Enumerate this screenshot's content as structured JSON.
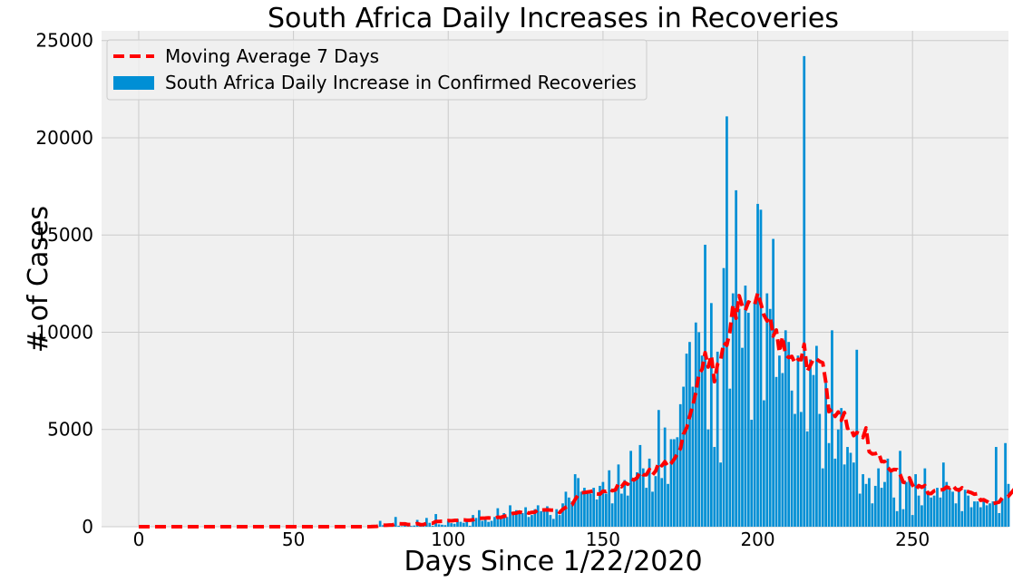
{
  "colors": {
    "background": "#ffffff",
    "plot_background": "#f0f0f0",
    "grid": "#cbcbcb",
    "bar": "#008fd5",
    "line": "#ff0000",
    "legend_border": "#cccccc"
  },
  "chart_data": {
    "type": "bar",
    "title": "South Africa Daily Increases in Recoveries",
    "xlabel": "Days Since 1/22/2020",
    "ylabel": "# of Cases",
    "xlim": [
      -12,
      281
    ],
    "ylim": [
      0,
      25500
    ],
    "x_ticks": [
      0,
      50,
      100,
      150,
      200,
      250
    ],
    "y_ticks": [
      0,
      5000,
      10000,
      15000,
      20000,
      25000
    ],
    "grid": true,
    "legend_position": "top-left",
    "series": [
      {
        "name": "South Africa Daily Increase in Confirmed Recoveries",
        "kind": "bar",
        "x_start": 0,
        "values": [
          0,
          0,
          0,
          0,
          0,
          0,
          0,
          0,
          0,
          0,
          0,
          0,
          0,
          0,
          0,
          0,
          0,
          0,
          0,
          0,
          0,
          0,
          0,
          0,
          0,
          0,
          0,
          0,
          0,
          0,
          0,
          0,
          0,
          0,
          0,
          0,
          0,
          0,
          0,
          0,
          0,
          0,
          0,
          0,
          0,
          0,
          0,
          0,
          0,
          0,
          0,
          0,
          0,
          0,
          0,
          0,
          0,
          0,
          0,
          0,
          0,
          0,
          0,
          0,
          0,
          0,
          0,
          0,
          0,
          0,
          0,
          0,
          0,
          0,
          0,
          30,
          60,
          40,
          300,
          80,
          30,
          60,
          50,
          500,
          50,
          30,
          70,
          20,
          40,
          60,
          350,
          60,
          80,
          450,
          200,
          50,
          650,
          120,
          100,
          80,
          300,
          180,
          150,
          400,
          250,
          200,
          300,
          50,
          600,
          450,
          850,
          300,
          350,
          250,
          300,
          500,
          950,
          400,
          700,
          500,
          1100,
          600,
          850,
          750,
          700,
          1000,
          500,
          600,
          900,
          1100,
          800,
          850,
          1050,
          600,
          400,
          900,
          600,
          1200,
          1800,
          1500,
          1300,
          2700,
          2500,
          1800,
          2000,
          1700,
          1700,
          2000,
          1400,
          2100,
          2300,
          1700,
          2900,
          1200,
          1800,
          3200,
          1700,
          2400,
          1600,
          3900,
          2400,
          2800,
          4200,
          3000,
          2000,
          3500,
          1800,
          2600,
          6000,
          2500,
          5100,
          2200,
          4500,
          4500,
          4600,
          6300,
          7200,
          8900,
          9500,
          7200,
          10500,
          10000,
          8800,
          14500,
          5000,
          11500,
          4100,
          9000,
          3300,
          13300,
          21100,
          7100,
          12000,
          17300,
          11200,
          9200,
          12400,
          11000,
          5500,
          11500,
          16600,
          16300,
          6500,
          12000,
          11200,
          14800,
          7700,
          8800,
          7900,
          10100,
          9500,
          7000,
          5800,
          8800,
          5900,
          24200,
          4900,
          8600,
          7800,
          9300,
          5800,
          3000,
          7400,
          4300,
          10100,
          3500,
          5000,
          6100,
          3200,
          4100,
          3800,
          3300,
          9100,
          1700,
          2700,
          2200,
          2500,
          1200,
          2100,
          3000,
          2000,
          2300,
          3500,
          2800,
          1500,
          800,
          3900,
          900,
          2300,
          2500,
          600,
          2700,
          1600,
          1100,
          3000,
          1700,
          1500,
          1600,
          2000,
          1500,
          3300,
          2300,
          1900,
          1800,
          1200,
          2000,
          800,
          1900,
          1600,
          1000,
          1300,
          1300,
          1000,
          1400,
          1100,
          1200,
          1300,
          4100,
          700,
          1400,
          4300,
          2200
        ]
      },
      {
        "name": "Moving Average 7 Days",
        "kind": "line",
        "x_start": 0,
        "values": [
          0,
          0,
          0,
          0,
          0,
          0,
          0,
          0,
          0,
          0,
          0,
          0,
          0,
          0,
          0,
          0,
          0,
          0,
          0,
          0,
          0,
          0,
          0,
          0,
          0,
          0,
          0,
          0,
          0,
          0,
          0,
          0,
          0,
          0,
          0,
          0,
          0,
          0,
          0,
          0,
          0,
          0,
          0,
          0,
          0,
          0,
          0,
          0,
          0,
          0,
          0,
          0,
          0,
          0,
          0,
          0,
          0,
          0,
          0,
          0,
          0,
          0,
          0,
          0,
          0,
          0,
          0,
          0,
          0,
          0,
          0,
          0,
          0,
          0,
          0,
          4,
          13,
          19,
          61,
          73,
          77,
          86,
          89,
          151,
          153,
          146,
          147,
          110,
          114,
          121,
          162,
          107,
          111,
          167,
          177,
          180,
          268,
          269,
          277,
          276,
          314,
          304,
          324,
          326,
          343,
          350,
          333,
          331,
          354,
          405,
          429,
          436,
          443,
          455,
          442,
          436,
          491,
          478,
          535,
          558,
          641,
          690,
          700,
          755,
          718,
          771,
          697,
          736,
          747,
          880,
          857,
          864,
          867,
          854,
          850,
          837,
          731,
          893,
          1000,
          1083,
          1127,
          1400,
          1656,
          1744,
          1757,
          1783,
          1808,
          1843,
          1690,
          1673,
          1832,
          1814,
          1942,
          1850,
          1890,
          2224,
          2058,
          2271,
          2183,
          2469,
          2400,
          2511,
          2816,
          2671,
          2670,
          2941,
          2669,
          2857,
          3296,
          3136,
          3343,
          3095,
          3257,
          3471,
          3744,
          4010,
          4760,
          5071,
          5671,
          6239,
          6895,
          7857,
          8087,
          8951,
          8213,
          8814,
          7457,
          8357,
          8536,
          9464,
          9329,
          10021,
          11421,
          10721,
          11879,
          11343,
          11129,
          11557,
          11471,
          11414,
          12017,
          11471,
          10883,
          10583,
          10793,
          9807,
          10114,
          8971,
          9771,
          8843,
          8700,
          8757,
          8414,
          8600,
          8586,
          9386,
          7986,
          8300,
          8629,
          8614,
          8500,
          8429,
          7414,
          5914,
          6043,
          5671,
          5900,
          5471,
          5871,
          5057,
          5100,
          4686,
          4843,
          4786,
          4586,
          5080,
          3857,
          3743,
          3757,
          3829,
          3350,
          3357,
          3043,
          2871,
          2943,
          2929,
          2686,
          2286,
          2257,
          2514,
          2143,
          1900,
          2114,
          2029,
          2114,
          1714,
          1700,
          1843,
          1871,
          1886,
          1914,
          2043,
          1986,
          2129,
          1929,
          1871,
          2000,
          1843,
          1800,
          1751,
          1671,
          1700,
          1357,
          1386,
          1300,
          1200,
          1190,
          1224,
          1266,
          1486,
          1500,
          1571,
          1757,
          1957,
          2243,
          2550,
          2243
        ]
      }
    ]
  }
}
